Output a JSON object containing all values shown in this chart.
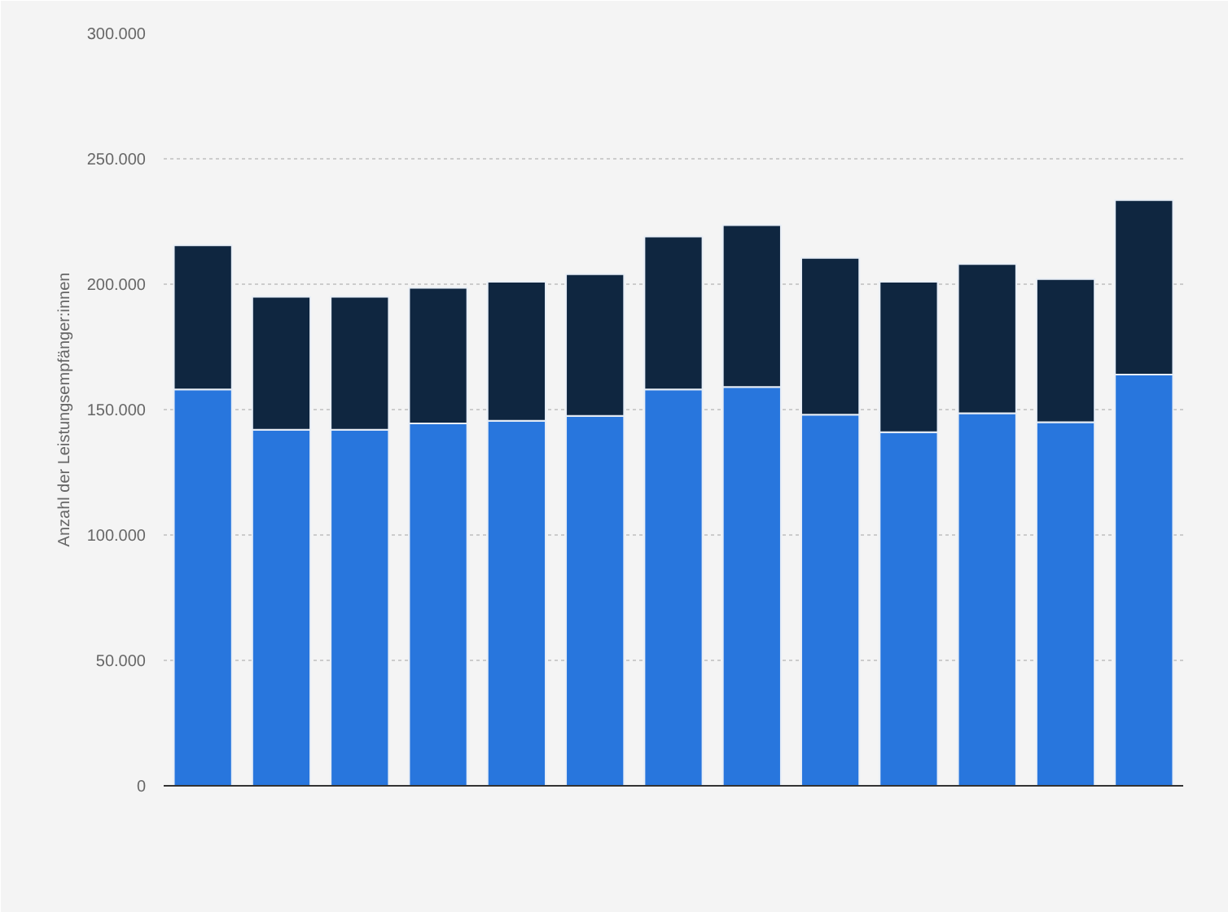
{
  "chart_data": {
    "type": "bar",
    "stacked": true,
    "ylabel": "Anzahl der Leistungsempfänger:innen",
    "categories": [
      null,
      null,
      null,
      null,
      null,
      null,
      null,
      null,
      null,
      null,
      null,
      null,
      null
    ],
    "series": [
      {
        "color": "#2876dd",
        "values": [
          158000,
          142000,
          142000,
          144500,
          145500,
          147500,
          158000,
          159000,
          148000,
          141000,
          148500,
          145000,
          164000
        ]
      },
      {
        "color": "#0f2640",
        "values": [
          57500,
          53000,
          53000,
          54000,
          55500,
          56500,
          61000,
          64500,
          62500,
          60000,
          59500,
          57000,
          69500
        ]
      }
    ],
    "ylim": [
      0,
      300000
    ],
    "yticks": [
      {
        "value": 0,
        "label": "0"
      },
      {
        "value": 50000,
        "label": "50.000"
      },
      {
        "value": 100000,
        "label": "100.000"
      },
      {
        "value": 150000,
        "label": "150.000"
      },
      {
        "value": 200000,
        "label": "200.000"
      },
      {
        "value": 250000,
        "label": "250.000"
      },
      {
        "value": 300000,
        "label": "300.000"
      }
    ],
    "grid": "y",
    "tick_labels": "y"
  }
}
